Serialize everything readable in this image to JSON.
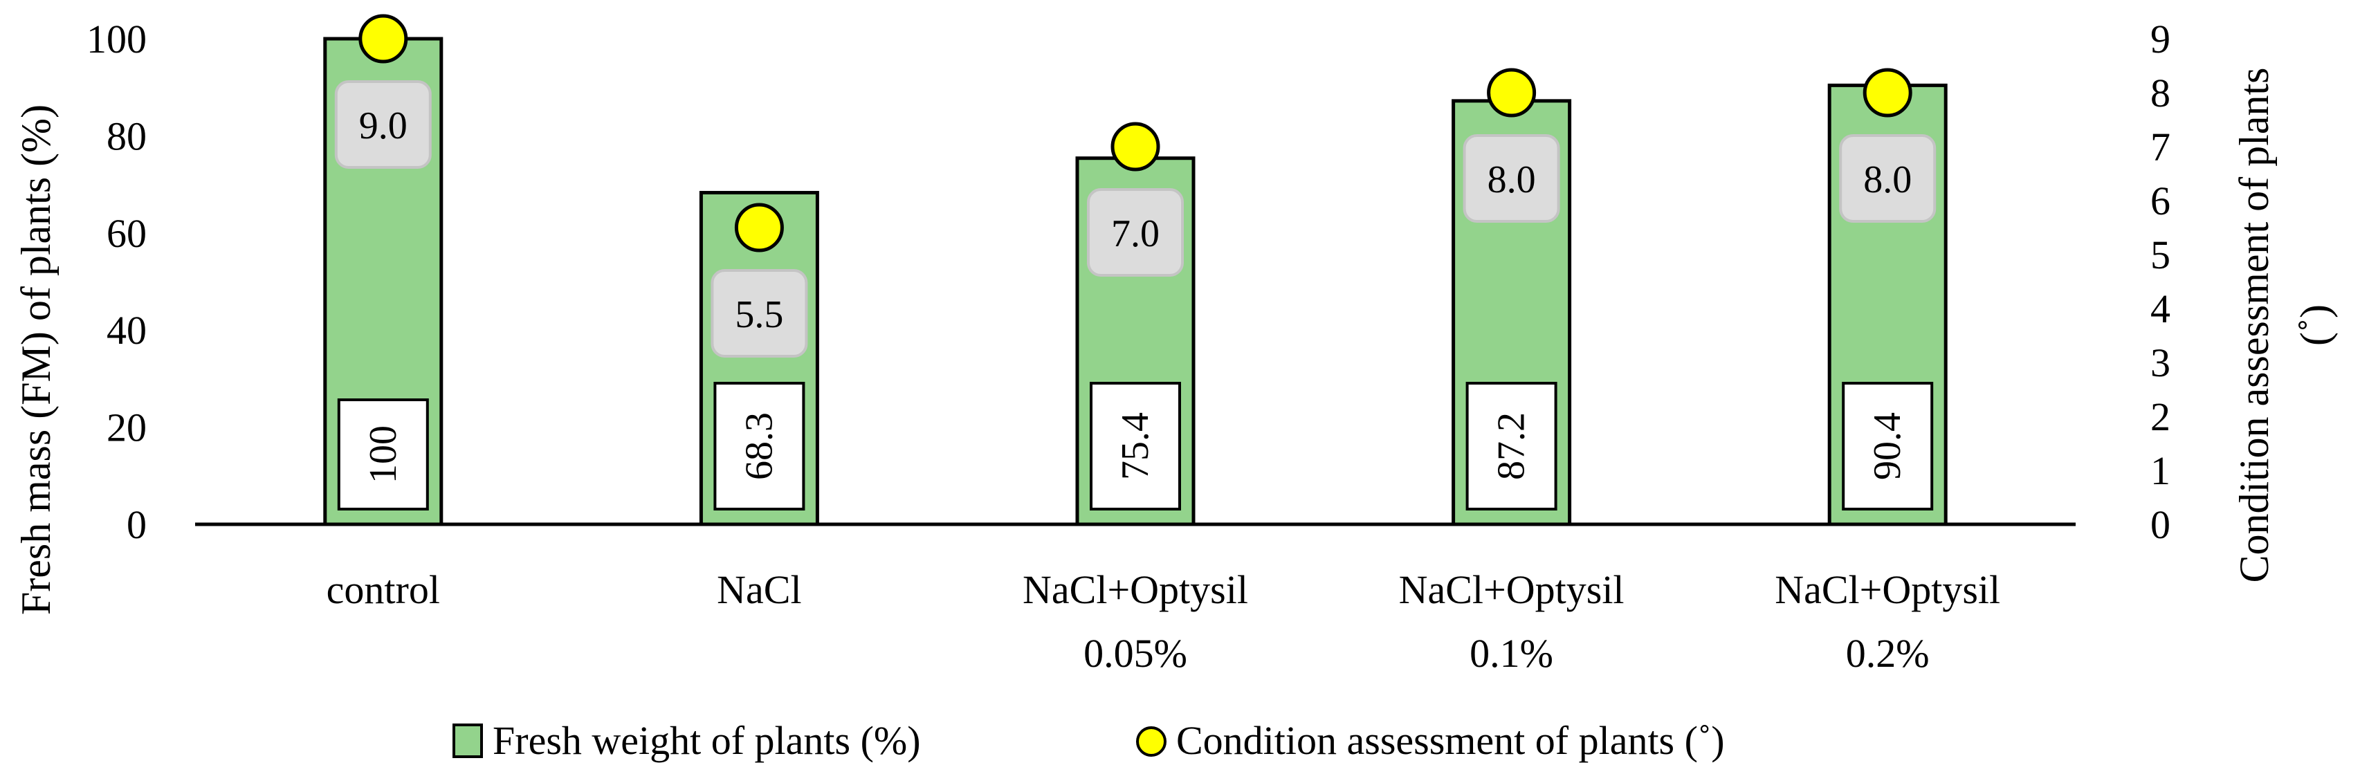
{
  "chart_data": {
    "type": "bar",
    "categories": [
      [
        "control"
      ],
      [
        "NaCl"
      ],
      [
        "NaCl+Optysil",
        "0.05%"
      ],
      [
        "NaCl+Optysil",
        "0.1%"
      ],
      [
        "NaCl+Optysil",
        "0.2%"
      ]
    ],
    "series": [
      {
        "name": "Fresh weight of plants (%)",
        "type": "bar",
        "axis": "left",
        "values": [
          100,
          68.3,
          75.4,
          87.2,
          90.4
        ],
        "labels": [
          "100",
          "68.3",
          "75.4",
          "87.2",
          "90.4"
        ],
        "color": "#93d38c"
      },
      {
        "name": "Condition assessment of plants (˚)",
        "type": "scatter",
        "axis": "right",
        "values": [
          9.0,
          5.5,
          7.0,
          8.0,
          8.0
        ],
        "labels": [
          "9.0",
          "5.5",
          "7.0",
          "8.0",
          "8.0"
        ],
        "color": "#ffff00"
      }
    ],
    "ylabel": "Fresh  mass (FM) of plants (%)",
    "y2label_lines": [
      "Condition assessment of plants",
      "(˚)"
    ],
    "ylim": [
      0,
      100
    ],
    "yticks": [
      "0",
      "20",
      "40",
      "60",
      "80",
      "100"
    ],
    "y2lim": [
      0,
      9
    ],
    "y2ticks": [
      "0",
      "1",
      "2",
      "3",
      "4",
      "5",
      "6",
      "7",
      "8",
      "9"
    ],
    "legend_position": "bottom-center",
    "grid": false
  }
}
